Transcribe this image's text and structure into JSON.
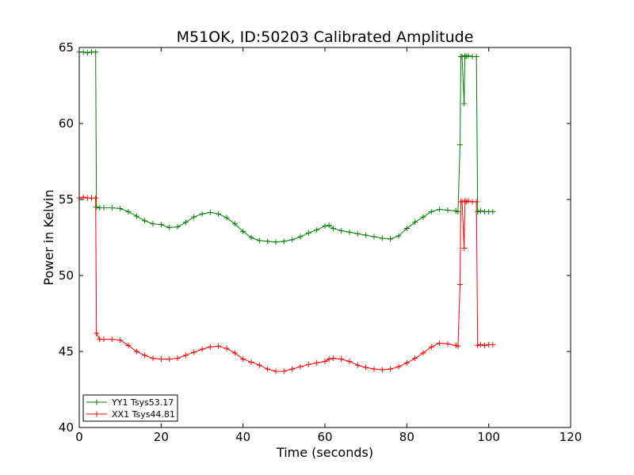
{
  "chart_data": {
    "type": "line",
    "title": "M51OK, ID:50203 Calibrated Amplitude",
    "xlabel": "Time (seconds)",
    "ylabel": "Power in Kelvin",
    "xlim": [
      0,
      120
    ],
    "ylim": [
      40,
      65
    ],
    "xticks": [
      0,
      20,
      40,
      60,
      80,
      100,
      120
    ],
    "yticks": [
      40,
      45,
      50,
      55,
      60,
      65
    ],
    "grid": false,
    "legend_position": "lower-left",
    "marker": "+",
    "series": [
      {
        "name": "YY1 Tsys53.17",
        "color": "#008000",
        "x": [
          0,
          1,
          2,
          3,
          4,
          4.2,
          5,
          6,
          8,
          10,
          12,
          14,
          16,
          18,
          20,
          22,
          24,
          26,
          28,
          30,
          32,
          34,
          36,
          38,
          40,
          42,
          44,
          46,
          48,
          50,
          52,
          54,
          56,
          58,
          60,
          61,
          62,
          64,
          66,
          68,
          70,
          72,
          74,
          76,
          78,
          80,
          82,
          84,
          86,
          88,
          90,
          92,
          92.5,
          93,
          93.2,
          93.5,
          94,
          94.2,
          94.5,
          95,
          96,
          97,
          97.3,
          98,
          99,
          100,
          101
        ],
        "y": [
          64.7,
          64.7,
          64.65,
          64.7,
          64.7,
          54.5,
          54.45,
          54.45,
          54.45,
          54.4,
          54.2,
          53.9,
          53.6,
          53.4,
          53.35,
          53.15,
          53.2,
          53.5,
          53.85,
          54.05,
          54.15,
          54.05,
          53.8,
          53.4,
          52.9,
          52.5,
          52.3,
          52.25,
          52.2,
          52.25,
          52.35,
          52.55,
          52.8,
          53.0,
          53.25,
          53.3,
          53.1,
          52.95,
          52.85,
          52.75,
          52.65,
          52.55,
          52.45,
          52.4,
          52.6,
          53.1,
          53.5,
          53.85,
          54.2,
          54.35,
          54.3,
          54.25,
          54.2,
          58.6,
          64.4,
          64.4,
          61.3,
          64.45,
          64.4,
          64.45,
          64.4,
          64.4,
          54.2,
          54.25,
          54.2,
          54.2,
          54.2
        ]
      },
      {
        "name": "XX1 Tsys44.81",
        "color": "#ff0000",
        "x": [
          0,
          1,
          2,
          3,
          4,
          4.2,
          5,
          6,
          8,
          10,
          12,
          14,
          16,
          18,
          20,
          22,
          24,
          26,
          28,
          30,
          32,
          34,
          36,
          38,
          40,
          42,
          44,
          46,
          48,
          50,
          52,
          54,
          56,
          58,
          60,
          61,
          62,
          64,
          66,
          68,
          70,
          72,
          74,
          76,
          78,
          80,
          82,
          84,
          86,
          88,
          90,
          92,
          92.5,
          93,
          93.2,
          93.5,
          94,
          94.2,
          94.5,
          95,
          96,
          97,
          97.3,
          98,
          99,
          100,
          101
        ],
        "y": [
          55.1,
          55.15,
          55.1,
          55.1,
          55.1,
          46.2,
          45.8,
          45.8,
          45.8,
          45.75,
          45.4,
          45.0,
          44.75,
          44.55,
          44.5,
          44.5,
          44.55,
          44.75,
          44.95,
          45.15,
          45.3,
          45.35,
          45.2,
          44.9,
          44.5,
          44.3,
          44.1,
          43.85,
          43.7,
          43.7,
          43.85,
          44.0,
          44.15,
          44.25,
          44.35,
          44.5,
          44.55,
          44.5,
          44.35,
          44.1,
          43.95,
          43.85,
          43.8,
          43.85,
          44.0,
          44.25,
          44.55,
          44.9,
          45.3,
          45.55,
          45.5,
          45.4,
          45.35,
          49.4,
          54.85,
          54.85,
          51.8,
          54.9,
          54.85,
          54.9,
          54.85,
          54.85,
          45.4,
          45.45,
          45.4,
          45.45,
          45.45
        ]
      }
    ]
  }
}
